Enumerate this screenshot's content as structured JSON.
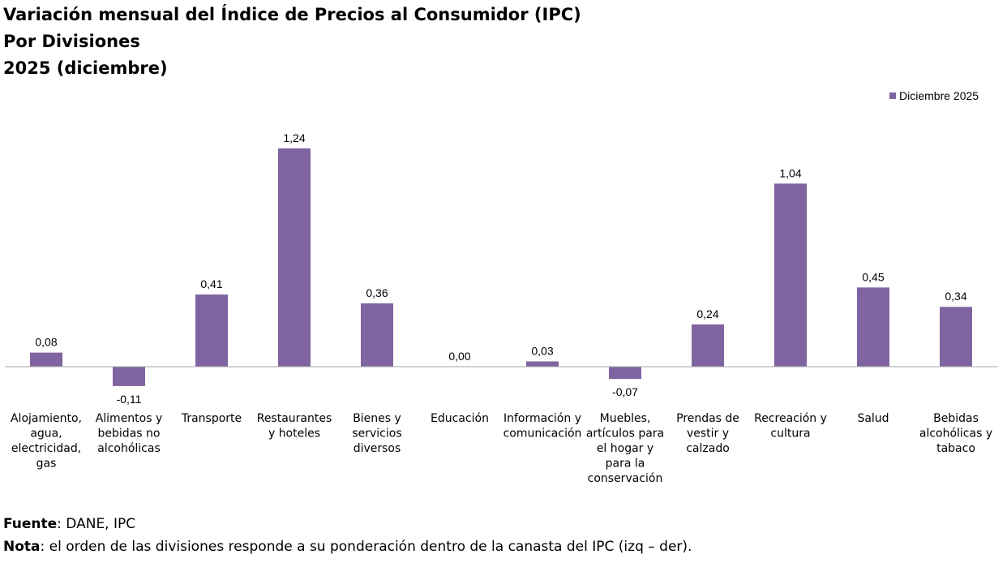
{
  "title": {
    "line1": "Variación mensual del Índice de Precios al Consumidor (IPC)",
    "line2": "Por Divisiones",
    "line3": "2025 (diciembre)"
  },
  "footer": {
    "source_label": "Fuente",
    "source_text": ": DANE, IPC",
    "note_label": "Nota",
    "note_text": ": el orden de las divisiones responde a su ponderación dentro de la canasta del IPC (izq – der)."
  },
  "chart_data": {
    "type": "bar",
    "title": "Variación mensual del Índice de Precios al Consumidor (IPC) - Por Divisiones - 2025 (diciembre)",
    "legend": [
      "Diciembre 2025"
    ],
    "legend_position": "top-right",
    "grid": false,
    "bar_color": "#8064A2",
    "categories": [
      [
        "Alojamiento,",
        "agua,",
        "electricidad,",
        "gas"
      ],
      [
        "Alimentos y",
        "bebidas no",
        "alcohólicas"
      ],
      [
        "Transporte"
      ],
      [
        "Restaurantes",
        "y hoteles"
      ],
      [
        "Bienes y",
        "servicios",
        "diversos"
      ],
      [
        "Educación"
      ],
      [
        "Información y",
        "comunicación"
      ],
      [
        "Muebles,",
        "artículos para",
        "el hogar y",
        "para la",
        "conservación"
      ],
      [
        "Prendas de",
        "vestir y",
        "calzado"
      ],
      [
        "Recreación y",
        "cultura"
      ],
      [
        "Salud"
      ],
      [
        "Bebidas",
        "alcohólicas y",
        "tabaco"
      ]
    ],
    "series": [
      {
        "name": "Diciembre 2025",
        "values": [
          0.08,
          -0.11,
          0.41,
          1.24,
          0.36,
          0.0,
          0.03,
          -0.07,
          0.24,
          1.04,
          0.45,
          0.34
        ],
        "labels": [
          "0,08",
          "-0,11",
          "0,41",
          "1,24",
          "0,36",
          "0,00",
          "0,03",
          "-0,07",
          "0,24",
          "1,04",
          "0,45",
          "0,34"
        ]
      }
    ]
  }
}
